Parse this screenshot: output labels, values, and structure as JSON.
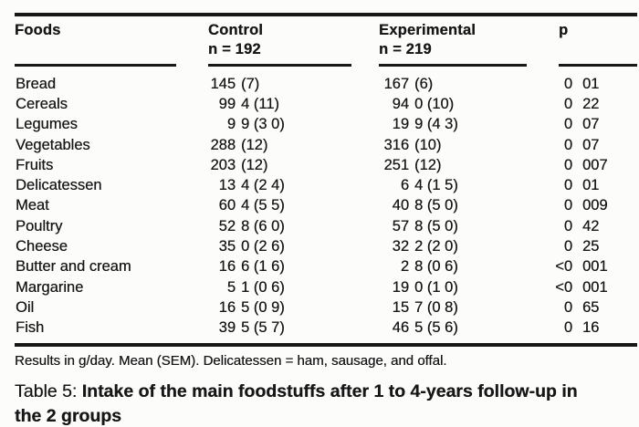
{
  "table": {
    "columns": {
      "foods": "Foods",
      "control": "Control",
      "control_n": "n = 192",
      "experimental": "Experimental",
      "experimental_n": "n = 219",
      "p": "p"
    },
    "rows": [
      {
        "food": "Bread",
        "control": "145 (7)",
        "experimental": "167 (6)",
        "p": "0 01"
      },
      {
        "food": "Cereals",
        "control": "99 4 (11)",
        "experimental": "94 0 (10)",
        "p": "0 22"
      },
      {
        "food": "Legumes",
        "control": "9 9 (3 0)",
        "experimental": "19 9 (4 3)",
        "p": "0 07"
      },
      {
        "food": "Vegetables",
        "control": "288 (12)",
        "experimental": "316 (10)",
        "p": "0 07"
      },
      {
        "food": "Fruits",
        "control": "203 (12)",
        "experimental": "251 (12)",
        "p": "0 007"
      },
      {
        "food": "Delicatessen",
        "control": "13 4 (2 4)",
        "experimental": "6 4 (1 5)",
        "p": "0 01"
      },
      {
        "food": "Meat",
        "control": "60 4 (5 5)",
        "experimental": "40 8 (5 0)",
        "p": "0 009"
      },
      {
        "food": "Poultry",
        "control": "52 8 (6 0)",
        "experimental": "57 8 (5 0)",
        "p": "0 42"
      },
      {
        "food": "Cheese",
        "control": "35 0 (2 6)",
        "experimental": "32 2 (2 0)",
        "p": "0 25"
      },
      {
        "food": "Butter and cream",
        "control": "16 6 (1 6)",
        "experimental": "2 8 (0 6)",
        "p": "<0 001"
      },
      {
        "food": "Margarine",
        "control": "5 1 (0 6)",
        "experimental": "19 0 (1 0)",
        "p": "<0 001"
      },
      {
        "food": "Oil",
        "control": "16 5 (0 9)",
        "experimental": "15 7 (0 8)",
        "p": "0 65"
      },
      {
        "food": "Fish",
        "control": "39 5 (5 7)",
        "experimental": "46 5 (5 6)",
        "p": "0 16"
      }
    ],
    "footnote": "Results in g/day. Mean (SEM). Delicatessen = ham, sausage, and offal."
  },
  "caption": {
    "label": "Table 5:",
    "title": "Intake of the main foodstuffs after 1 to 4-years follow-up in the 2 groups"
  }
}
